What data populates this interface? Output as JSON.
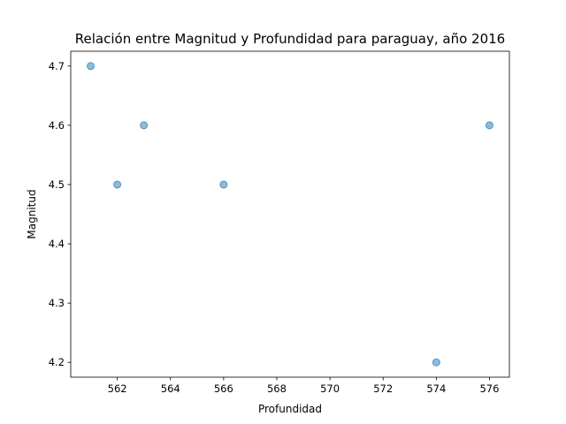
{
  "chart_data": {
    "type": "scatter",
    "title": "Relación entre Magnitud y Profundidad para paraguay, año 2016",
    "xlabel": "Profundidad",
    "ylabel": "Magnitud",
    "x": [
      561,
      562,
      563,
      566,
      574,
      576
    ],
    "y": [
      4.7,
      4.5,
      4.6,
      4.5,
      4.2,
      4.6
    ],
    "xlim": [
      560.25,
      576.75
    ],
    "ylim": [
      4.175,
      4.725
    ],
    "xticks": [
      "562",
      "564",
      "566",
      "568",
      "570",
      "572",
      "574",
      "576"
    ],
    "yticks": [
      "4.2",
      "4.3",
      "4.4",
      "4.5",
      "4.6",
      "4.7"
    ],
    "colors": {
      "point": "#1f77b4"
    },
    "grid": false,
    "legend": "none"
  }
}
